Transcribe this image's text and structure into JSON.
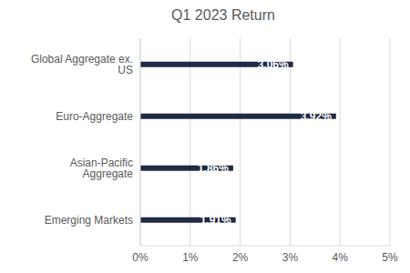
{
  "chart_data": {
    "type": "bar",
    "title": "Q1 2023 Return",
    "orientation": "horizontal",
    "categories": [
      "Global Aggregate ex. US",
      "Euro-Aggregate",
      "Asian-Pacific Aggregate",
      "Emerging Markets"
    ],
    "values": [
      3.06,
      3.92,
      1.86,
      1.91
    ],
    "value_labels": [
      "3.06%",
      "3.92%",
      "1.86%",
      "1.91%"
    ],
    "data_labels": true,
    "color": "#1f2a44",
    "xlim": [
      0,
      5
    ],
    "xticks": [
      {
        "value": 0,
        "label": "0%"
      },
      {
        "value": 1,
        "label": "1%"
      },
      {
        "value": 2,
        "label": "2%"
      },
      {
        "value": 3,
        "label": "3%"
      },
      {
        "value": 4,
        "label": "4%"
      },
      {
        "value": 5,
        "label": "5%"
      }
    ],
    "grid": true
  }
}
